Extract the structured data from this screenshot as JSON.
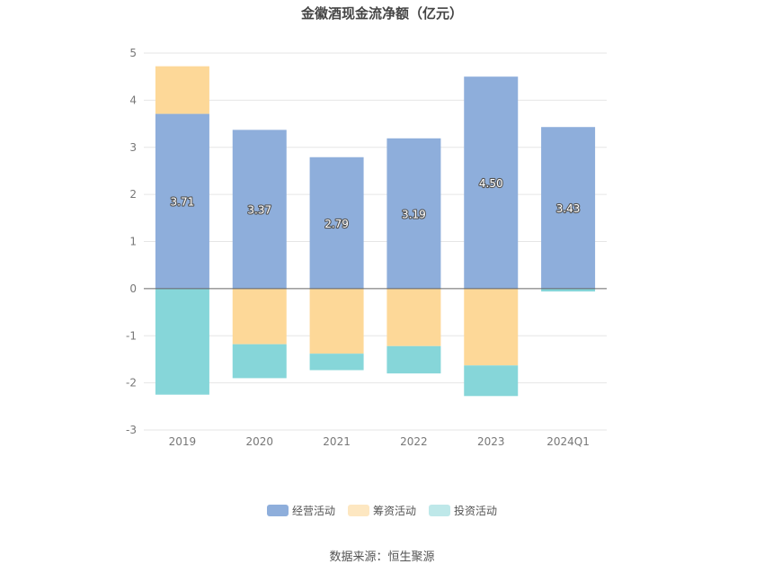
{
  "chart_data": {
    "type": "bar",
    "stacked": true,
    "title": "金徽酒现金流净额（亿元）",
    "categories": [
      "2019",
      "2020",
      "2021",
      "2022",
      "2023",
      "2024Q1"
    ],
    "ylim": [
      -3,
      5
    ],
    "yticks": [
      "5",
      "4",
      "3",
      "2",
      "1",
      "0",
      "-1",
      "-2",
      "-3"
    ],
    "grid": true,
    "legend_position": "bottom",
    "series": [
      {
        "name": "经营活动",
        "color": "#8eaedb",
        "values": [
          3.71,
          3.37,
          2.79,
          3.19,
          4.5,
          3.43
        ],
        "labels": [
          "3.71",
          "3.37",
          "2.79",
          "3.19",
          "4.50",
          "3.43"
        ]
      },
      {
        "name": "筹资活动",
        "color": "#fdd898",
        "values": [
          1.01,
          -1.18,
          -1.38,
          -1.22,
          -1.63,
          0.0
        ]
      },
      {
        "name": "投资活动",
        "color": "#86d6d9",
        "values": [
          -2.25,
          -0.72,
          -0.35,
          -0.58,
          -0.65,
          -0.06
        ]
      }
    ],
    "legend_colors": [
      "#8eaedb",
      "#fde7c1",
      "#bee8e9"
    ],
    "source": "数据来源：恒生聚源"
  }
}
